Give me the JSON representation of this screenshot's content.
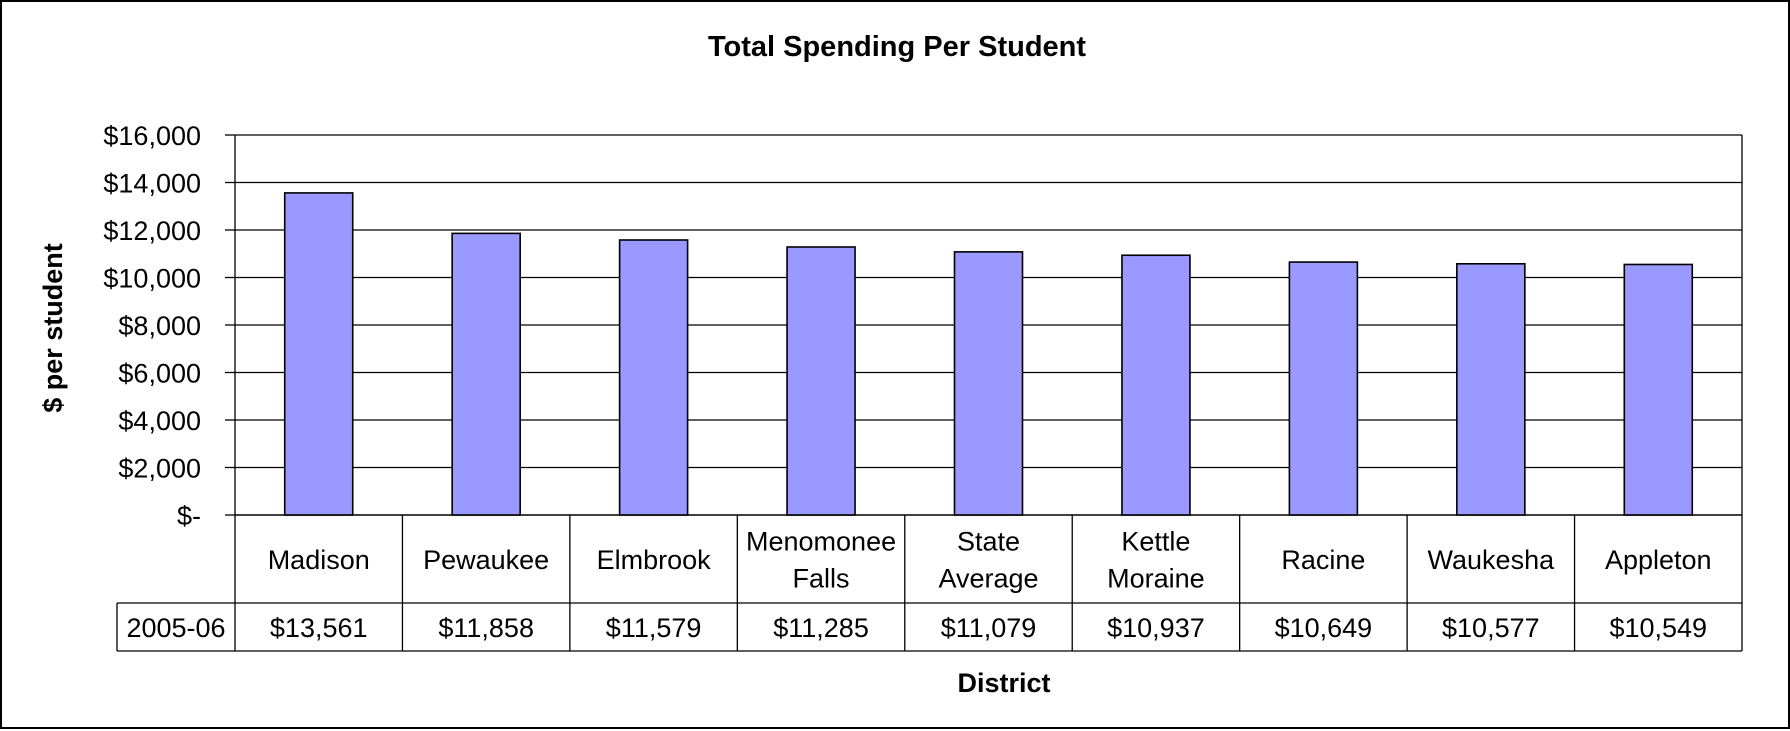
{
  "chart_data": {
    "type": "bar",
    "title": "Total Spending Per Student",
    "xlabel": "District",
    "ylabel": "$ per student",
    "categories": [
      [
        "Madison"
      ],
      [
        "Pewaukee"
      ],
      [
        "Elmbrook"
      ],
      [
        "Menomonee",
        "Falls"
      ],
      [
        "State",
        "Average"
      ],
      [
        "Kettle",
        "Moraine"
      ],
      [
        "Racine"
      ],
      [
        "Waukesha"
      ],
      [
        "Appleton"
      ]
    ],
    "series": [
      {
        "name": "2005-06",
        "values": [
          13561,
          11858,
          11579,
          11285,
          11079,
          10937,
          10649,
          10577,
          10549
        ],
        "labels": [
          "$13,561",
          "$11,858",
          "$11,579",
          "$11,285",
          "$11,079",
          "$10,937",
          "$10,649",
          "$10,577",
          "$10,549"
        ]
      }
    ],
    "ylim": [
      0,
      16000
    ],
    "yticks": [
      0,
      2000,
      4000,
      6000,
      8000,
      10000,
      12000,
      14000,
      16000
    ],
    "ytick_labels": [
      "$-",
      "$2,000",
      "$4,000",
      "$6,000",
      "$8,000",
      "$10,000",
      "$12,000",
      "$14,000",
      "$16,000"
    ],
    "grid": true,
    "data_table": true,
    "colors": {
      "bar": "#9999ff",
      "bar_stroke": "#000000",
      "grid": "#000000"
    }
  }
}
